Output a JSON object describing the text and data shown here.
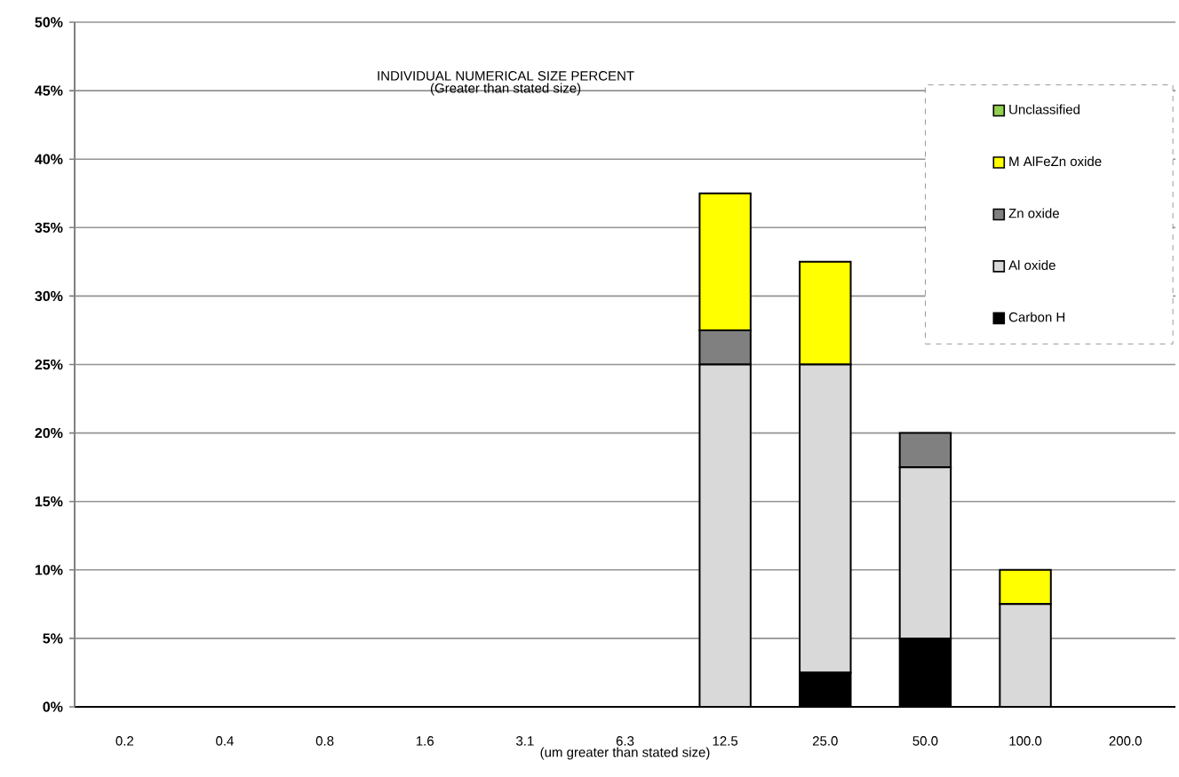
{
  "chart_data": {
    "type": "bar",
    "stacked": true,
    "title": "INDIVIDUAL NUMERICAL SIZE PERCENT",
    "subtitle": "(Greater than stated size)",
    "xlabel": "(um greater than stated size)",
    "categories": [
      "0.2",
      "0.4",
      "0.8",
      "1.6",
      "3.1",
      "6.3",
      "12.5",
      "25.0",
      "50.0",
      "100.0",
      "200.0"
    ],
    "series": [
      {
        "name": "Carbon H",
        "color": "#000000",
        "values": [
          0,
          0,
          0,
          0,
          0,
          0,
          0,
          2.5,
          5,
          0,
          0
        ]
      },
      {
        "name": "Al oxide",
        "color": "#d9d9d9",
        "values": [
          0,
          0,
          0,
          0,
          0,
          0,
          25,
          22.5,
          12.5,
          7.5,
          0
        ]
      },
      {
        "name": "Zn oxide",
        "color": "#808080",
        "values": [
          0,
          0,
          0,
          0,
          0,
          0,
          2.5,
          0,
          2.5,
          0,
          0
        ]
      },
      {
        "name": "M AlFeZn oxide",
        "color": "#ffff00",
        "values": [
          0,
          0,
          0,
          0,
          0,
          0,
          10,
          7.5,
          0,
          2.5,
          0
        ]
      },
      {
        "name": "Unclassified",
        "color": "#92d050",
        "values": [
          0,
          0,
          0,
          0,
          0,
          0,
          0,
          0,
          0,
          0,
          0
        ]
      }
    ],
    "ylim": [
      0,
      50
    ],
    "yticks": [
      {
        "value": 0,
        "label": "0%"
      },
      {
        "value": 5,
        "label": "5%"
      },
      {
        "value": 10,
        "label": "10%"
      },
      {
        "value": 15,
        "label": "15%"
      },
      {
        "value": 20,
        "label": "20%"
      },
      {
        "value": 25,
        "label": "25%"
      },
      {
        "value": 30,
        "label": "30%"
      },
      {
        "value": 35,
        "label": "35%"
      },
      {
        "value": 40,
        "label": "40%"
      },
      {
        "value": 45,
        "label": "45%"
      },
      {
        "value": 50,
        "label": "50%"
      }
    ],
    "grid": "y",
    "legend": "top right"
  }
}
